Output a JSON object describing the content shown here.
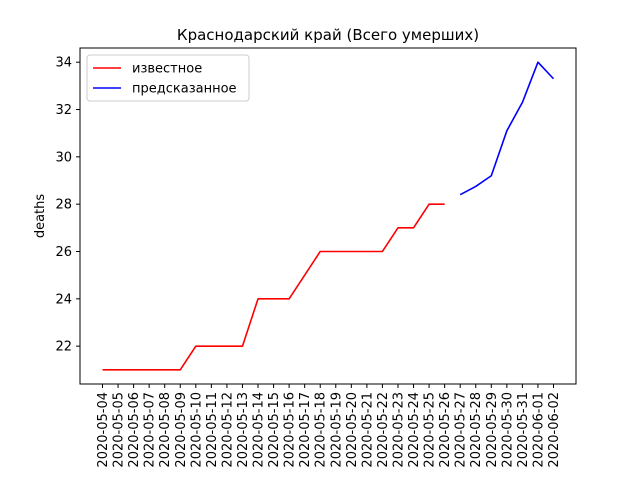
{
  "chart_data": {
    "type": "line",
    "title": "Краснодарский край (Всего умерших)",
    "xlabel": "",
    "ylabel": "deaths",
    "categories": [
      "2020-05-04",
      "2020-05-05",
      "2020-05-06",
      "2020-05-07",
      "2020-05-08",
      "2020-05-09",
      "2020-05-10",
      "2020-05-11",
      "2020-05-12",
      "2020-05-13",
      "2020-05-14",
      "2020-05-15",
      "2020-05-16",
      "2020-05-17",
      "2020-05-18",
      "2020-05-19",
      "2020-05-20",
      "2020-05-21",
      "2020-05-22",
      "2020-05-23",
      "2020-05-24",
      "2020-05-25",
      "2020-05-26",
      "2020-05-27",
      "2020-05-28",
      "2020-05-29",
      "2020-05-30",
      "2020-05-31",
      "2020-06-01",
      "2020-06-02"
    ],
    "yticks": [
      22,
      24,
      26,
      28,
      30,
      32,
      34
    ],
    "ylim": [
      20.4,
      34.6
    ],
    "grid": false,
    "legend_position": "upper-left",
    "series": [
      {
        "name": "известное",
        "color": "#ff0000",
        "x": [
          "2020-05-04",
          "2020-05-05",
          "2020-05-06",
          "2020-05-07",
          "2020-05-08",
          "2020-05-09",
          "2020-05-10",
          "2020-05-11",
          "2020-05-12",
          "2020-05-13",
          "2020-05-14",
          "2020-05-15",
          "2020-05-16",
          "2020-05-17",
          "2020-05-18",
          "2020-05-19",
          "2020-05-20",
          "2020-05-21",
          "2020-05-22",
          "2020-05-23",
          "2020-05-24",
          "2020-05-25",
          "2020-05-26"
        ],
        "values": [
          21,
          21,
          21,
          21,
          21,
          21,
          22,
          22,
          22,
          22,
          24,
          24,
          24,
          25,
          26,
          26,
          26,
          26,
          26,
          27,
          27,
          28,
          28
        ]
      },
      {
        "name": "предсказанное",
        "color": "#0000ff",
        "x": [
          "2020-05-27",
          "2020-05-28",
          "2020-05-29",
          "2020-05-30",
          "2020-05-31",
          "2020-06-01",
          "2020-06-02"
        ],
        "values": [
          28.4,
          28.75,
          29.2,
          31.1,
          32.3,
          34.0,
          33.3
        ]
      }
    ]
  }
}
